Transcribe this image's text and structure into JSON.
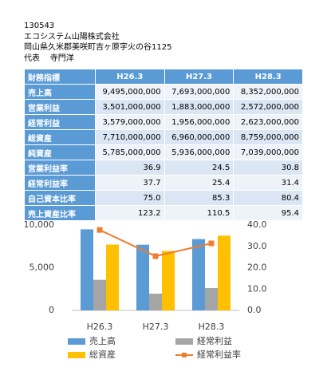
{
  "header": {
    "code": "130543",
    "company": "エコシステム山陽株式会社",
    "address": "岡山県久米郡美咲町吉ヶ原字火の谷1125",
    "representative_role": "代表",
    "representative_name": "寺門洋"
  },
  "table": {
    "columns": [
      "財務指標",
      "H26.3",
      "H27.3",
      "H28.3"
    ],
    "rows": [
      [
        "売上高",
        "9,495,000,000",
        "7,693,000,000",
        "8,352,000,000"
      ],
      [
        "営業利益",
        "3,501,000,000",
        "1,883,000,000",
        "2,572,000,000"
      ],
      [
        "経常利益",
        "3,579,000,000",
        "1,956,000,000",
        "2,623,000,000"
      ],
      [
        "総資産",
        "7,710,000,000",
        "6,960,000,000",
        "8,759,000,000"
      ],
      [
        "純資産",
        "5,785,000,000",
        "5,936,000,000",
        "7,039,000,000"
      ],
      [
        "営業利益率",
        "36.9",
        "24.5",
        "30.8"
      ],
      [
        "経常利益率",
        "37.7",
        "25.4",
        "31.4"
      ],
      [
        "自己資本比率",
        "75.0",
        "85.3",
        "80.4"
      ],
      [
        "売上資産比率",
        "123.2",
        "110.5",
        "95.4"
      ]
    ]
  },
  "chart_data": {
    "type": "bar",
    "categories": [
      "H26.3",
      "H27.3",
      "H28.3"
    ],
    "series": [
      {
        "name": "売上高",
        "color": "#5b9bd5",
        "values": [
          9495,
          7693,
          8352
        ]
      },
      {
        "name": "経常利益",
        "color": "#a5a5a5",
        "values": [
          3579,
          1956,
          2623
        ]
      },
      {
        "name": "総資産",
        "color": "#ffc000",
        "values": [
          7710,
          6960,
          8759
        ]
      },
      {
        "name": "経常利益率",
        "color": "#ed7d31",
        "type": "line",
        "axis": "y2",
        "values": [
          37.7,
          25.4,
          31.4
        ]
      }
    ],
    "ylim": [
      0,
      10000
    ],
    "yticks": [
      0,
      {
        "value": 5000,
        "label": "5,000"
      },
      {
        "value": 10000,
        "label": "10,000"
      }
    ],
    "y2lim": [
      0,
      40
    ],
    "y2ticks": [
      {
        "value": 0,
        "label": "0.0"
      },
      {
        "value": 10,
        "label": "10.0"
      },
      {
        "value": 20,
        "label": "20.0"
      },
      {
        "value": 30,
        "label": "30.0"
      },
      {
        "value": 40,
        "label": "40.0"
      }
    ],
    "grid": false
  }
}
